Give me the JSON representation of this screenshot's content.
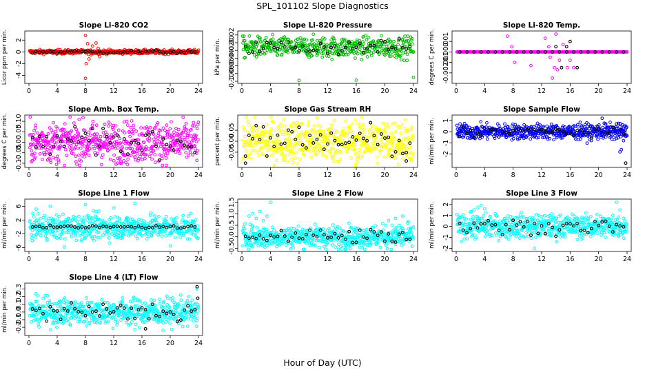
{
  "figure": {
    "title": "SPL_101102  Slope Diagnostics",
    "xlabel": "Hour of Day (UTC)"
  },
  "chart_data": [
    {
      "type": "scatter",
      "title": "Slope Li-820 CO2",
      "ylabel": "Licor ppm per min.",
      "xlim": [
        0,
        24
      ],
      "ylim": [
        -5,
        3.2
      ],
      "xticks": [
        "0",
        "4",
        "8",
        "12",
        "16",
        "20",
        "24"
      ],
      "yticks": [
        -4,
        -2,
        0,
        2
      ],
      "colors": {
        "points": "#ff0000",
        "hourly": "#000000"
      },
      "points": {
        "hours": {
          "start": 0.1,
          "end": 24,
          "step": 0.05
        },
        "baseline": 0.0,
        "spread": 0.18,
        "outliers": [
          [
            8.0,
            2.8
          ],
          [
            8.0,
            -4.5
          ],
          [
            8.1,
            -2.0
          ],
          [
            8.3,
            1.4
          ],
          [
            8.5,
            -1.2
          ],
          [
            9.0,
            1.0
          ],
          [
            9.5,
            1.5
          ],
          [
            9.8,
            0.6
          ],
          [
            10.0,
            -0.8
          ],
          [
            8.8,
            -0.5
          ]
        ]
      },
      "hourly_means": {
        "hours": {
          "start": 0.5,
          "end": 23.5,
          "step": 0.5
        },
        "baseline": 0.0,
        "spread": 0.15
      }
    },
    {
      "type": "scatter",
      "title": "Slope Li-820 Pressure",
      "ylabel": "kPa per min.",
      "xlim": [
        0,
        24
      ],
      "ylim": [
        -0.1,
        0.025
      ],
      "xticks": [
        "0",
        "4",
        "8",
        "12",
        "16",
        "20",
        "24"
      ],
      "yticks": [
        -0.1,
        -0.08,
        -0.06,
        -0.04,
        -0.02,
        0.0,
        0.02
      ],
      "colors": {
        "points": "#00bb00",
        "hourly": "#000000"
      },
      "points": {
        "hours": {
          "start": 0.1,
          "end": 24,
          "step": 0.05
        },
        "baseline": -0.012,
        "spread": 0.014,
        "outliers": [
          [
            8.0,
            -0.098
          ],
          [
            16.0,
            -0.097
          ],
          [
            24.0,
            -0.09
          ]
        ]
      },
      "hourly_means": {
        "hours": {
          "start": 0.5,
          "end": 23.5,
          "step": 0.5
        },
        "baseline": -0.012,
        "spread": 0.01
      }
    },
    {
      "type": "scatter",
      "title": "Slope Li-820 Temp.",
      "ylabel": "degrees C per min.",
      "xlim": [
        0,
        24
      ],
      "ylim": [
        -0.0028,
        0.0018
      ],
      "xticks": [
        "0",
        "4",
        "8",
        "12",
        "16",
        "20",
        "24"
      ],
      "yticks": [
        -0.002,
        -0.001,
        0.0,
        0.001
      ],
      "colors": {
        "points": "#ff00ff",
        "hourly": "#000000"
      },
      "points": {
        "hours": {
          "start": 0.1,
          "end": 24,
          "step": 0.1
        },
        "baseline": 0.0,
        "spread": 0.0,
        "outliers": [
          [
            7.2,
            0.0015
          ],
          [
            7.8,
            0.0005
          ],
          [
            8.2,
            -0.001
          ],
          [
            10.5,
            -0.0013
          ],
          [
            12.5,
            0.0013
          ],
          [
            13.0,
            0.0005
          ],
          [
            13.5,
            -0.0025
          ],
          [
            13.8,
            -0.0015
          ],
          [
            14.0,
            0.0017
          ],
          [
            14.5,
            -0.0008
          ],
          [
            15.0,
            0.0007
          ],
          [
            15.6,
            -0.0015
          ],
          [
            16.0,
            -0.0008
          ],
          [
            16.5,
            -0.0015
          ],
          [
            14.2,
            -0.0017
          ],
          [
            13.2,
            -0.0005
          ]
        ]
      },
      "hourly_means": {
        "hours": {
          "start": 0.5,
          "end": 23.5,
          "step": 1.0
        },
        "baseline": 0.0,
        "spread": 0.0,
        "extra": [
          [
            14.0,
            0.0005
          ],
          [
            15.5,
            0.0005
          ],
          [
            16.0,
            0.001
          ],
          [
            17.0,
            -0.0015
          ],
          [
            14.8,
            -0.0015
          ]
        ]
      }
    },
    {
      "type": "scatter",
      "title": "Slope Amb. Box Temp.",
      "ylabel": "degrees C per min.",
      "xlim": [
        0,
        24
      ],
      "ylim": [
        -0.11,
        0.12
      ],
      "xticks": [
        "0",
        "4",
        "8",
        "12",
        "16",
        "20",
        "24"
      ],
      "yticks": [
        -0.1,
        -0.05,
        0.0,
        0.05,
        0.1
      ],
      "colors": {
        "points": "#ff00ff",
        "hourly": "#000000"
      },
      "points": {
        "hours": {
          "start": 0.1,
          "end": 24,
          "step": 0.04
        },
        "baseline": 0.0,
        "spread": 0.05,
        "outliers": []
      },
      "hourly_means": {
        "hours": {
          "start": 0.5,
          "end": 23.5,
          "step": 0.5
        },
        "baseline": 0.0,
        "spread": 0.035
      }
    },
    {
      "type": "scatter",
      "title": "Slope Gas Stream RH",
      "ylabel": "percent per min.",
      "xlim": [
        0,
        24
      ],
      "ylim": [
        -0.11,
        0.11
      ],
      "xticks": [
        "0",
        "4",
        "8",
        "12",
        "16",
        "20",
        "24"
      ],
      "yticks": [
        -0.05,
        0.0,
        0.05
      ],
      "colors": {
        "points": "#ffff00",
        "hourly": "#000000"
      },
      "points": {
        "hours": {
          "start": 0.1,
          "end": 24,
          "step": 0.04
        },
        "baseline": 0.0,
        "spread": 0.05,
        "outliers": []
      },
      "hourly_means": {
        "hours": {
          "start": 0.5,
          "end": 23.5,
          "step": 0.5
        },
        "baseline": 0.0,
        "spread": 0.04,
        "extra": [
          [
            0.5,
            -0.1
          ],
          [
            23.0,
            -0.09
          ]
        ]
      }
    },
    {
      "type": "scatter",
      "title": "Slope Sample Flow",
      "ylabel": "ml/min per min.",
      "xlim": [
        0,
        24
      ],
      "ylim": [
        -3,
        1.3
      ],
      "xticks": [
        "0",
        "4",
        "8",
        "12",
        "16",
        "20",
        "24"
      ],
      "yticks": [
        -2,
        -1,
        0,
        1
      ],
      "colors": {
        "points": "#0000ff",
        "hourly": "#000000"
      },
      "points": {
        "hours": {
          "start": 0.1,
          "end": 24,
          "step": 0.04
        },
        "baseline": 0.0,
        "spread": 0.35,
        "outliers": [
          [
            20.5,
            1.2
          ],
          [
            23.0,
            -1.8
          ],
          [
            23.2,
            -1.6
          ],
          [
            23.5,
            -0.8
          ],
          [
            22.5,
            -0.6
          ],
          [
            21.0,
            0.7
          ],
          [
            0.8,
            0.5
          ]
        ]
      },
      "hourly_means": {
        "hours": {
          "start": 0.5,
          "end": 23.5,
          "step": 0.5
        },
        "baseline": 0.0,
        "spread": 0.25,
        "extra": [
          [
            23.8,
            -2.8
          ]
        ]
      }
    },
    {
      "type": "scatter",
      "title": "Slope Line 1 Flow",
      "ylabel": "ml/min per min.",
      "xlim": [
        0,
        24
      ],
      "ylim": [
        -6.5,
        7.5
      ],
      "xticks": [
        "0",
        "4",
        "8",
        "12",
        "16",
        "20",
        "24"
      ],
      "yticks": [
        -6,
        -2,
        2,
        6
      ],
      "colors": {
        "points": "#00ffff",
        "hourly": "#000000"
      },
      "points": {
        "hours": {
          "start": 0.1,
          "end": 24,
          "step": 0.04
        },
        "baseline": 0.0,
        "spread": 1.8,
        "outliers": [
          [
            5.0,
            -5.8
          ],
          [
            8.0,
            6.5
          ],
          [
            12.0,
            5.5
          ],
          [
            15.0,
            6.8
          ],
          [
            20.0,
            -5.5
          ],
          [
            3.0,
            6.0
          ]
        ]
      },
      "hourly_means": {
        "hours": {
          "start": 0.5,
          "end": 23.5,
          "step": 0.5
        },
        "baseline": 0.0,
        "spread": 0.2
      }
    },
    {
      "type": "scatter",
      "title": "Slope Line 2 Flow",
      "ylabel": "ml/min per min.",
      "xlim": [
        0,
        24
      ],
      "ylim": [
        -0.55,
        1.55
      ],
      "xticks": [
        "0",
        "4",
        "8",
        "12",
        "16",
        "20",
        "24"
      ],
      "yticks": [
        -0.5,
        0.0,
        0.5,
        1.0,
        1.5
      ],
      "colors": {
        "points": "#00ffff",
        "hourly": "#000000"
      },
      "points": {
        "hours": {
          "start": 0.1,
          "end": 24,
          "step": 0.04
        },
        "baseline": 0.0,
        "spread": 0.25,
        "outliers": [
          [
            1.0,
            0.9
          ],
          [
            1.5,
            1.0
          ],
          [
            2.0,
            0.8
          ],
          [
            2.5,
            1.1
          ],
          [
            3.0,
            0.7
          ],
          [
            3.5,
            0.9
          ],
          [
            4.0,
            1.5
          ],
          [
            20.5,
            0.7
          ],
          [
            21.5,
            0.8
          ],
          [
            22.5,
            0.9
          ],
          [
            23.2,
            0.6
          ],
          [
            22.0,
            0.5
          ]
        ]
      },
      "hourly_means": {
        "hours": {
          "start": 0.5,
          "end": 23.5,
          "step": 0.5
        },
        "baseline": 0.0,
        "spread": 0.18
      }
    },
    {
      "type": "scatter",
      "title": "Slope Line 3 Flow",
      "ylabel": "ml/min per min.",
      "xlim": [
        0,
        24
      ],
      "ylim": [
        -2.1,
        2.3
      ],
      "xticks": [
        "0",
        "4",
        "8",
        "12",
        "16",
        "20",
        "24"
      ],
      "yticks": [
        -2,
        -1,
        0,
        1,
        2
      ],
      "colors": {
        "points": "#00ffff",
        "hourly": "#000000"
      },
      "points": {
        "hours": {
          "start": 0.1,
          "end": 24,
          "step": 0.04
        },
        "baseline": 0.0,
        "spread": 0.55,
        "outliers": [
          [
            2.0,
            1.3
          ],
          [
            2.5,
            1.5
          ],
          [
            3.0,
            1.7
          ],
          [
            3.5,
            1.9
          ],
          [
            4.0,
            1.6
          ],
          [
            22.5,
            2.2
          ],
          [
            23.0,
            1.5
          ],
          [
            22.0,
            1.0
          ],
          [
            11.0,
            -2.0
          ]
        ]
      },
      "hourly_means": {
        "hours": {
          "start": 0.5,
          "end": 23.5,
          "step": 0.5
        },
        "baseline": 0.0,
        "spread": 0.35
      }
    },
    {
      "type": "scatter",
      "title": "Slope Line 4 (LT) Flow",
      "ylabel": "ml/min per min.",
      "xlim": [
        0,
        24
      ],
      "ylim": [
        -0.28,
        0.35
      ],
      "xticks": [
        "0",
        "4",
        "8",
        "12",
        "16",
        "20",
        "24"
      ],
      "yticks": [
        -0.2,
        -0.1,
        0.0,
        0.1,
        0.2,
        0.3
      ],
      "colors": {
        "points": "#00ffff",
        "hourly": "#000000"
      },
      "points": {
        "hours": {
          "start": 0.1,
          "end": 24,
          "step": 0.04
        },
        "baseline": 0.0,
        "spread": 0.09,
        "outliers": [
          [
            23.8,
            0.3
          ],
          [
            19.0,
            -0.24
          ],
          [
            15.0,
            -0.23
          ]
        ]
      },
      "hourly_means": {
        "hours": {
          "start": 0.5,
          "end": 23.5,
          "step": 0.5
        },
        "baseline": 0.0,
        "spread": 0.07,
        "extra": [
          [
            23.8,
            0.33
          ],
          [
            23.9,
            0.18
          ],
          [
            16.5,
            -0.22
          ]
        ]
      }
    }
  ]
}
